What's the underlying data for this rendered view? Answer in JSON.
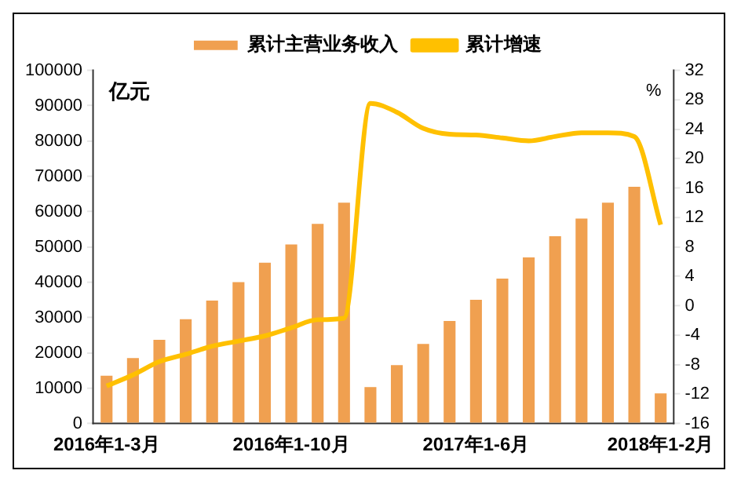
{
  "chart_data": {
    "type": "bar",
    "categories": [
      "2016年1-3月",
      null,
      null,
      null,
      null,
      null,
      null,
      "2016年1-10月",
      null,
      null,
      null,
      null,
      null,
      null,
      "2017年1-6月",
      null,
      null,
      null,
      null,
      null,
      null,
      "2018年1-2月"
    ],
    "series": [
      {
        "name": "累计主营业务收入",
        "color": "#f0a050",
        "values": [
          13500,
          18500,
          23700,
          29500,
          34800,
          40000,
          45500,
          50700,
          56500,
          62500,
          10300,
          16500,
          22500,
          29000,
          35000,
          41000,
          47000,
          53000,
          58000,
          62500,
          67000,
          8500
        ]
      },
      {
        "name": "累计增速",
        "type": "line",
        "axis": "y2",
        "color": "#ffc000",
        "values": [
          -10.9,
          -9.4,
          -7.6,
          -6.6,
          -5.5,
          -4.8,
          -4.1,
          -3.0,
          -1.9,
          -1.7,
          27.5,
          26.3,
          24.1,
          23.3,
          23.2,
          22.8,
          22.4,
          23.0,
          23.5,
          23.5,
          23.0,
          11.0
        ]
      }
    ],
    "ylabel": "亿元",
    "y2label": "%",
    "ylim": [
      0,
      100000
    ],
    "yticks": [
      0,
      10000,
      20000,
      30000,
      40000,
      50000,
      60000,
      70000,
      80000,
      90000,
      100000
    ],
    "y2lim": [
      -16,
      32
    ],
    "y2ticks": [
      -16,
      -12,
      -8,
      -4,
      0,
      4,
      8,
      12,
      16,
      20,
      24,
      28,
      32
    ],
    "grid": false,
    "legend": "top",
    "marker": "none",
    "line_style": "solid"
  }
}
